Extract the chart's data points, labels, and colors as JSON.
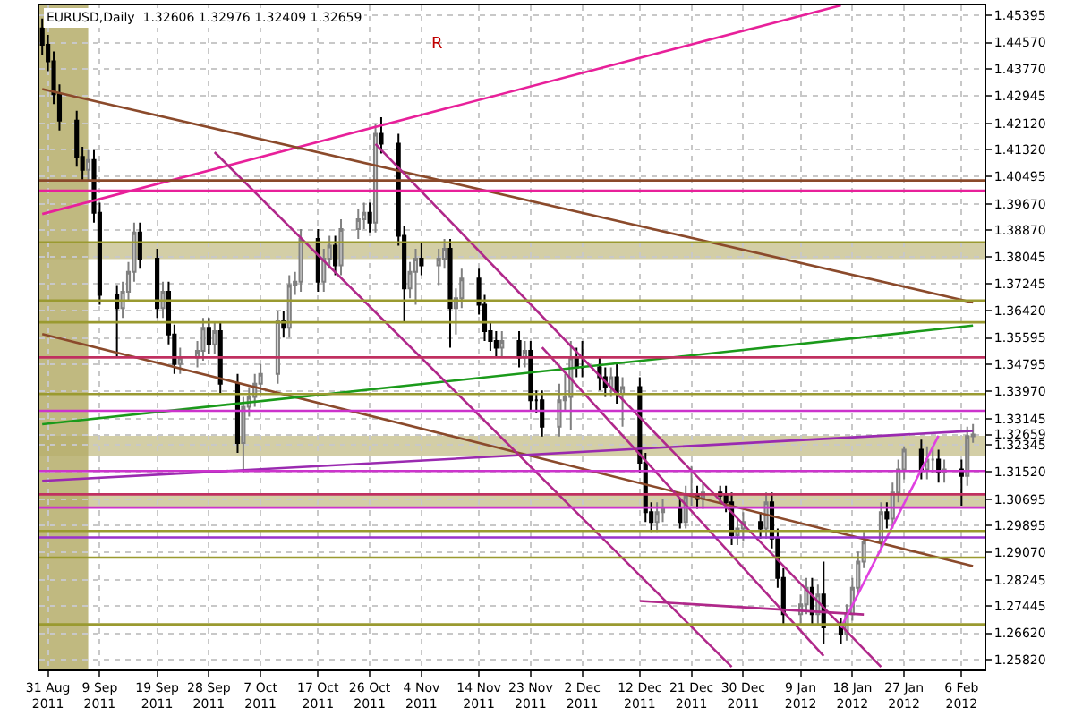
{
  "chart_data": {
    "type": "candlestick",
    "title": "EURUSD,Daily  1.32606 1.32976 1.32409 1.32659",
    "annotations": [
      "R"
    ],
    "x": [
      "2011-08-30",
      "2011-08-31",
      "2011-09-01",
      "2011-09-02",
      "2011-09-05",
      "2011-09-06",
      "2011-09-07",
      "2011-09-08",
      "2011-09-09",
      "2011-09-12",
      "2011-09-13",
      "2011-09-14",
      "2011-09-15",
      "2011-09-16",
      "2011-09-19",
      "2011-09-20",
      "2011-09-21",
      "2011-09-22",
      "2011-09-23",
      "2011-09-26",
      "2011-09-27",
      "2011-09-28",
      "2011-09-29",
      "2011-09-30",
      "2011-10-03",
      "2011-10-04",
      "2011-10-05",
      "2011-10-06",
      "2011-10-07",
      "2011-10-10",
      "2011-10-11",
      "2011-10-12",
      "2011-10-13",
      "2011-10-14",
      "2011-10-17",
      "2011-10-18",
      "2011-10-19",
      "2011-10-20",
      "2011-10-21",
      "2011-10-24",
      "2011-10-25",
      "2011-10-26",
      "2011-10-27",
      "2011-10-28",
      "2011-10-31",
      "2011-11-01",
      "2011-11-02",
      "2011-11-03",
      "2011-11-04",
      "2011-11-07",
      "2011-11-08",
      "2011-11-09",
      "2011-11-10",
      "2011-11-11",
      "2011-11-14",
      "2011-11-15",
      "2011-11-16",
      "2011-11-17",
      "2011-11-18",
      "2011-11-21",
      "2011-11-22",
      "2011-11-23",
      "2011-11-24",
      "2011-11-25",
      "2011-11-28",
      "2011-11-29",
      "2011-11-30",
      "2011-12-01",
      "2011-12-02",
      "2011-12-05",
      "2011-12-06",
      "2011-12-07",
      "2011-12-08",
      "2011-12-09",
      "2011-12-12",
      "2011-12-13",
      "2011-12-14",
      "2011-12-15",
      "2011-12-16",
      "2011-12-19",
      "2011-12-20",
      "2011-12-21",
      "2011-12-22",
      "2011-12-23",
      "2011-12-26",
      "2011-12-27",
      "2011-12-28",
      "2011-12-29",
      "2011-12-30",
      "2012-01-02",
      "2012-01-03",
      "2012-01-04",
      "2012-01-05",
      "2012-01-06",
      "2012-01-09",
      "2012-01-10",
      "2012-01-11",
      "2012-01-12",
      "2012-01-13",
      "2012-01-16",
      "2012-01-17",
      "2012-01-18",
      "2012-01-19",
      "2012-01-20",
      "2012-01-23",
      "2012-01-24",
      "2012-01-25",
      "2012-01-26",
      "2012-01-27",
      "2012-01-30",
      "2012-01-31",
      "2012-02-01",
      "2012-02-02",
      "2012-02-03",
      "2012-02-06",
      "2012-02-07",
      "2012-02-08"
    ],
    "ohlc": [
      [
        1.45,
        1.453,
        1.442,
        1.445
      ],
      [
        1.445,
        1.448,
        1.437,
        1.44
      ],
      [
        1.44,
        1.443,
        1.427,
        1.43
      ],
      [
        1.43,
        1.433,
        1.419,
        1.422
      ],
      [
        1.422,
        1.425,
        1.408,
        1.411
      ],
      [
        1.411,
        1.414,
        1.404,
        1.407
      ],
      [
        1.407,
        1.413,
        1.404,
        1.41
      ],
      [
        1.41,
        1.413,
        1.391,
        1.394
      ],
      [
        1.394,
        1.397,
        1.366,
        1.369
      ],
      [
        1.369,
        1.372,
        1.35,
        1.365
      ],
      [
        1.365,
        1.373,
        1.362,
        1.37
      ],
      [
        1.37,
        1.379,
        1.367,
        1.376
      ],
      [
        1.376,
        1.391,
        1.373,
        1.388
      ],
      [
        1.388,
        1.391,
        1.377,
        1.38
      ],
      [
        1.38,
        1.383,
        1.362,
        1.365
      ],
      [
        1.365,
        1.373,
        1.362,
        1.37
      ],
      [
        1.37,
        1.373,
        1.354,
        1.357
      ],
      [
        1.357,
        1.36,
        1.345,
        1.348
      ],
      [
        1.348,
        1.353,
        1.345,
        1.35
      ],
      [
        1.35,
        1.355,
        1.347,
        1.352
      ],
      [
        1.352,
        1.362,
        1.349,
        1.359
      ],
      [
        1.359,
        1.362,
        1.351,
        1.354
      ],
      [
        1.354,
        1.361,
        1.351,
        1.358
      ],
      [
        1.358,
        1.361,
        1.339,
        1.342
      ],
      [
        1.342,
        1.345,
        1.321,
        1.324
      ],
      [
        1.324,
        1.338,
        1.315,
        1.335
      ],
      [
        1.335,
        1.341,
        1.332,
        1.338
      ],
      [
        1.338,
        1.345,
        1.335,
        1.342
      ],
      [
        1.342,
        1.348,
        1.339,
        1.345
      ],
      [
        1.345,
        1.364,
        1.342,
        1.361
      ],
      [
        1.361,
        1.364,
        1.356,
        1.359
      ],
      [
        1.359,
        1.375,
        1.356,
        1.372
      ],
      [
        1.372,
        1.376,
        1.369,
        1.373
      ],
      [
        1.373,
        1.389,
        1.37,
        1.386
      ],
      [
        1.386,
        1.389,
        1.37,
        1.373
      ],
      [
        1.373,
        1.383,
        1.37,
        1.38
      ],
      [
        1.38,
        1.387,
        1.377,
        1.384
      ],
      [
        1.384,
        1.387,
        1.375,
        1.378
      ],
      [
        1.378,
        1.392,
        1.375,
        1.389
      ],
      [
        1.389,
        1.395,
        1.386,
        1.392
      ],
      [
        1.392,
        1.397,
        1.389,
        1.394
      ],
      [
        1.394,
        1.397,
        1.388,
        1.391
      ],
      [
        1.391,
        1.421,
        1.388,
        1.418
      ],
      [
        1.418,
        1.423,
        1.412,
        1.415
      ],
      [
        1.415,
        1.418,
        1.384,
        1.387
      ],
      [
        1.387,
        1.39,
        1.361,
        1.371
      ],
      [
        1.371,
        1.379,
        1.368,
        1.376
      ],
      [
        1.376,
        1.383,
        1.366,
        1.38
      ],
      [
        1.38,
        1.385,
        1.375,
        1.378
      ],
      [
        1.378,
        1.383,
        1.372,
        1.38
      ],
      [
        1.38,
        1.386,
        1.377,
        1.383
      ],
      [
        1.383,
        1.386,
        1.353,
        1.365
      ],
      [
        1.365,
        1.371,
        1.357,
        1.368
      ],
      [
        1.368,
        1.377,
        1.365,
        1.374
      ],
      [
        1.374,
        1.377,
        1.363,
        1.366
      ],
      [
        1.366,
        1.369,
        1.355,
        1.358
      ],
      [
        1.358,
        1.361,
        1.352,
        1.355
      ],
      [
        1.355,
        1.358,
        1.35,
        1.353
      ],
      [
        1.353,
        1.358,
        1.35,
        1.355
      ],
      [
        1.355,
        1.358,
        1.347,
        1.35
      ],
      [
        1.35,
        1.355,
        1.347,
        1.352
      ],
      [
        1.352,
        1.355,
        1.334,
        1.337
      ],
      [
        1.337,
        1.34,
        1.333,
        1.337
      ],
      [
        1.337,
        1.34,
        1.326,
        1.329
      ],
      [
        1.329,
        1.342,
        1.326,
        1.337
      ],
      [
        1.337,
        1.345,
        1.334,
        1.338
      ],
      [
        1.338,
        1.355,
        1.328,
        1.35
      ],
      [
        1.35,
        1.353,
        1.344,
        1.347
      ],
      [
        1.347,
        1.355,
        1.344,
        1.347
      ],
      [
        1.347,
        1.35,
        1.34,
        1.344
      ],
      [
        1.344,
        1.347,
        1.338,
        1.341
      ],
      [
        1.341,
        1.347,
        1.338,
        1.344
      ],
      [
        1.344,
        1.348,
        1.336,
        1.339
      ],
      [
        1.339,
        1.344,
        1.329,
        1.341
      ],
      [
        1.341,
        1.344,
        1.315,
        1.318
      ],
      [
        1.318,
        1.321,
        1.3,
        1.303
      ],
      [
        1.303,
        1.306,
        1.297,
        1.3
      ],
      [
        1.3,
        1.306,
        1.297,
        1.303
      ],
      [
        1.303,
        1.307,
        1.3,
        1.304
      ],
      [
        1.304,
        1.307,
        1.298,
        1.3
      ],
      [
        1.3,
        1.311,
        1.298,
        1.308
      ],
      [
        1.308,
        1.317,
        1.305,
        1.308
      ],
      [
        1.308,
        1.311,
        1.304,
        1.307
      ],
      [
        1.307,
        1.312,
        1.304,
        1.309
      ],
      [
        1.309,
        1.311,
        1.306,
        1.308
      ],
      [
        1.308,
        1.311,
        1.303,
        1.306
      ],
      [
        1.306,
        1.309,
        1.293,
        1.296
      ],
      [
        1.296,
        1.301,
        1.293,
        1.298
      ],
      [
        1.298,
        1.303,
        1.294,
        1.3
      ],
      [
        1.3,
        1.303,
        1.295,
        1.298
      ],
      [
        1.298,
        1.309,
        1.295,
        1.306
      ],
      [
        1.306,
        1.309,
        1.292,
        1.295
      ],
      [
        1.295,
        1.298,
        1.28,
        1.283
      ],
      [
        1.283,
        1.286,
        1.269,
        1.272
      ],
      [
        1.272,
        1.278,
        1.269,
        1.275
      ],
      [
        1.275,
        1.283,
        1.272,
        1.28
      ],
      [
        1.28,
        1.283,
        1.269,
        1.272
      ],
      [
        1.272,
        1.281,
        1.269,
        1.278
      ],
      [
        1.278,
        1.288,
        1.263,
        1.268
      ],
      [
        1.268,
        1.271,
        1.263,
        1.266
      ],
      [
        1.266,
        1.275,
        1.264,
        1.272
      ],
      [
        1.272,
        1.283,
        1.27,
        1.28
      ],
      [
        1.28,
        1.291,
        1.278,
        1.288
      ],
      [
        1.288,
        1.297,
        1.286,
        1.294
      ],
      [
        1.294,
        1.306,
        1.292,
        1.303
      ],
      [
        1.303,
        1.306,
        1.298,
        1.301
      ],
      [
        1.301,
        1.312,
        1.298,
        1.309
      ],
      [
        1.309,
        1.319,
        1.306,
        1.316
      ],
      [
        1.316,
        1.323,
        1.313,
        1.322
      ],
      [
        1.322,
        1.325,
        1.313,
        1.316
      ],
      [
        1.316,
        1.323,
        1.313,
        1.319
      ],
      [
        1.319,
        1.323,
        1.315,
        1.319
      ],
      [
        1.319,
        1.322,
        1.312,
        1.315
      ],
      [
        1.315,
        1.319,
        1.312,
        1.316
      ],
      [
        1.316,
        1.319,
        1.305,
        1.314
      ],
      [
        1.314,
        1.329,
        1.311,
        1.3261
      ],
      [
        1.32606,
        1.32976,
        1.32409,
        1.32659
      ]
    ],
    "series": [
      {
        "type": "line",
        "color": "#e8209a",
        "x": [
          "2011-08-30",
          "2012-01-16"
        ],
        "values": [
          1.3936,
          1.457
        ]
      },
      {
        "type": "line",
        "color": "#8b4a2b",
        "x": [
          "2011-08-30",
          "2012-02-08"
        ],
        "values": [
          1.4316,
          1.3667
        ]
      },
      {
        "type": "line",
        "color": "#8b4a2b",
        "x": [
          "2011-08-30",
          "2012-02-08"
        ],
        "values": [
          1.3571,
          1.2866
        ]
      },
      {
        "type": "line",
        "color": "#1a9a1a",
        "x": [
          "2011-08-30",
          "2012-02-08"
        ],
        "values": [
          1.3297,
          1.3597
        ]
      },
      {
        "type": "line",
        "color": "#9a2ab0",
        "x": [
          "2011-08-30",
          "2012-02-08"
        ],
        "values": [
          1.3125,
          1.3277
        ]
      },
      {
        "type": "line",
        "color": "#b0288a",
        "x": [
          "2011-09-29",
          "2011-12-28"
        ],
        "values": [
          1.4124,
          1.256
        ]
      },
      {
        "type": "line",
        "color": "#b0288a",
        "x": [
          "2011-10-27",
          "2012-01-23"
        ],
        "values": [
          1.4149,
          1.256
        ]
      },
      {
        "type": "line",
        "color": "#b0288a",
        "x": [
          "2011-11-25",
          "2012-01-13"
        ],
        "values": [
          1.3531,
          1.2593
        ]
      },
      {
        "type": "line",
        "color": "#b0288a",
        "x": [
          "2011-12-12",
          "2012-01-20"
        ],
        "values": [
          1.276,
          1.2719
        ]
      },
      {
        "type": "line",
        "color": "#e040e0",
        "x": [
          "2012-01-16",
          "2012-02-02"
        ],
        "values": [
          1.2679,
          1.3262
        ]
      }
    ],
    "ref_lines": [
      {
        "axis": "y",
        "value": 1.4038,
        "color": "#8b4a2b"
      },
      {
        "axis": "y",
        "value": 1.4007,
        "color": "#e8209a"
      },
      {
        "axis": "y",
        "value": 1.385,
        "color": "#9a9a30"
      },
      {
        "axis": "y",
        "value": 1.3673,
        "color": "#9a9a30"
      },
      {
        "axis": "y",
        "value": 1.3607,
        "color": "#9a9a30"
      },
      {
        "axis": "y",
        "value": 1.35,
        "color": "#c03060"
      },
      {
        "axis": "y",
        "value": 1.3389,
        "color": "#9a9a30"
      },
      {
        "axis": "y",
        "value": 1.3338,
        "color": "#cc33cc"
      },
      {
        "axis": "y",
        "value": 1.3155,
        "color": "#cc33cc"
      },
      {
        "axis": "y",
        "value": 1.3084,
        "color": "#c03060"
      },
      {
        "axis": "y",
        "value": 1.3044,
        "color": "#cc33cc"
      },
      {
        "axis": "y",
        "value": 1.2973,
        "color": "#9a9a30"
      },
      {
        "axis": "y",
        "value": 1.2953,
        "color": "#9933cc"
      },
      {
        "axis": "y",
        "value": 1.2892,
        "color": "#9a9a30"
      },
      {
        "axis": "y",
        "value": 1.2689,
        "color": "#9a9a30"
      }
    ],
    "bands": [
      {
        "axis": "x",
        "from": "2011-08-29T12:00",
        "to": "2011-09-07",
        "color": "#b5ad6a"
      },
      {
        "axis": "y",
        "from": 1.3799,
        "to": 1.385,
        "color": "#b5ad6a"
      },
      {
        "axis": "y",
        "from": 1.3201,
        "to": 1.3262,
        "color": "#b5ad6a"
      },
      {
        "axis": "y",
        "from": 1.3044,
        "to": 1.3084,
        "color": "#b5ad6a"
      }
    ],
    "xlim": [
      "2011-08-29T12:00",
      "2012-02-10"
    ],
    "xticks": [
      {
        "value": "2011-08-31",
        "label": "31 Aug 2011"
      },
      {
        "value": "2011-09-09",
        "label": "9 Sep 2011"
      },
      {
        "value": "2011-09-19",
        "label": "19 Sep 2011"
      },
      {
        "value": "2011-09-28",
        "label": "28 Sep 2011"
      },
      {
        "value": "2011-10-07",
        "label": "7 Oct 2011"
      },
      {
        "value": "2011-10-17",
        "label": "17 Oct 2011"
      },
      {
        "value": "2011-10-26",
        "label": "26 Oct 2011"
      },
      {
        "value": "2011-11-04",
        "label": "4 Nov 2011"
      },
      {
        "value": "2011-11-14",
        "label": "14 Nov 2011"
      },
      {
        "value": "2011-11-23",
        "label": "23 Nov 2011"
      },
      {
        "value": "2011-12-02",
        "label": "2 Dec 2011"
      },
      {
        "value": "2011-12-12",
        "label": "12 Dec 2011"
      },
      {
        "value": "2011-12-21",
        "label": "21 Dec 2011"
      },
      {
        "value": "2011-12-30",
        "label": "30 Dec 2011"
      },
      {
        "value": "2012-01-09",
        "label": "9 Jan 2012"
      },
      {
        "value": "2012-01-18",
        "label": "18 Jan 2012"
      },
      {
        "value": "2012-01-27",
        "label": "27 Jan 2012"
      },
      {
        "value": "2012-02-06",
        "label": "6 Feb 2012"
      }
    ],
    "ylim": [
      1.2552,
      1.457
    ],
    "yticks": [
      1.45395,
      {
        "value": 1.4457,
        "label": "1.44570"
      },
      {
        "value": 1.4377,
        "label": "1.43770"
      },
      1.42945,
      {
        "value": 1.4212,
        "label": "1.42120"
      },
      {
        "value": 1.4132,
        "label": "1.41320"
      },
      1.40495,
      {
        "value": 1.3967,
        "label": "1.39670"
      },
      {
        "value": 1.3887,
        "label": "1.38870"
      },
      1.38045,
      1.37245,
      {
        "value": 1.3642,
        "label": "1.36420"
      },
      1.35595,
      1.34795,
      {
        "value": 1.3397,
        "label": "1.33970"
      },
      1.33145,
      1.32345,
      1.32659,
      {
        "value": 1.3152,
        "label": "1.31520"
      },
      1.30695,
      1.29895,
      {
        "value": 1.2907,
        "label": "1.29070"
      },
      1.28245,
      1.27445,
      {
        "value": 1.2662,
        "label": "1.26620"
      },
      {
        "value": 1.2582,
        "label": "1.25820"
      }
    ],
    "grid": true
  }
}
